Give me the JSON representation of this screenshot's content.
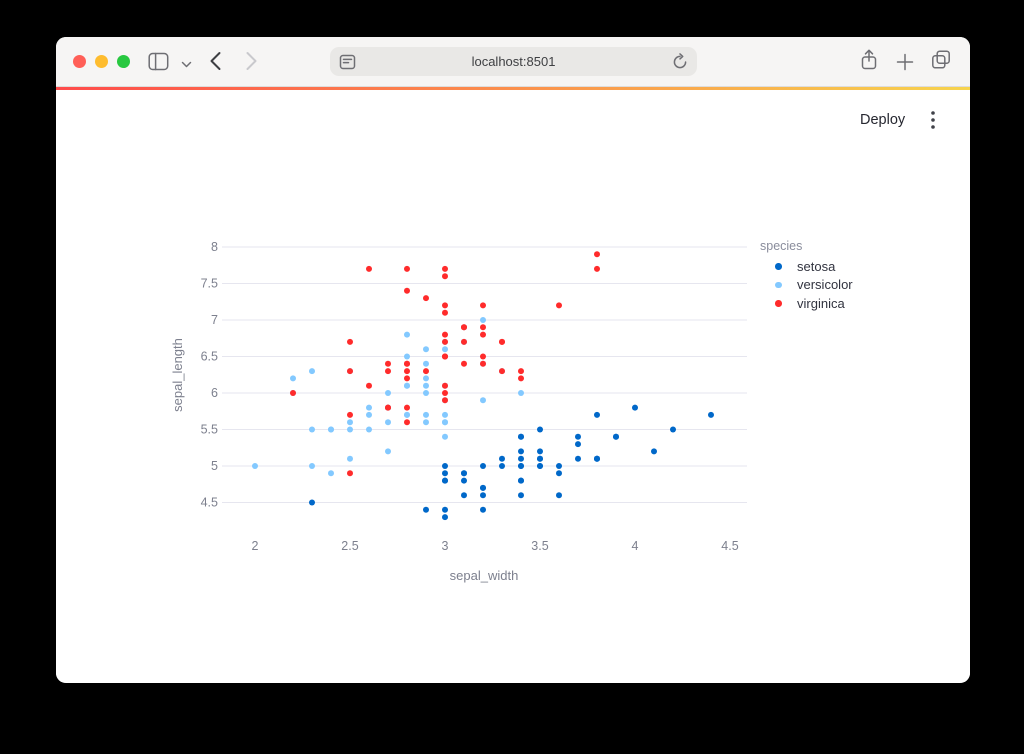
{
  "browser": {
    "url": "localhost:8501",
    "traffic_colors": [
      "#ff5f57",
      "#febc2e",
      "#28c840"
    ],
    "toolbar_icons": [
      "sidebar-icon",
      "chevron-down-icon",
      "back-icon",
      "forward-icon",
      "page-settings-icon",
      "reload-icon",
      "share-icon",
      "new-tab-icon",
      "tab-overview-icon"
    ]
  },
  "app": {
    "deploy_label": "Deploy",
    "menu_icon": "kebab-menu-icon",
    "decoration_colors": [
      "#ff4b4b",
      "#f7d44d"
    ]
  },
  "chart_data": {
    "type": "scatter",
    "title": "",
    "xlabel": "sepal_width",
    "ylabel": "sepal_length",
    "x_ticks": [
      2,
      2.5,
      3,
      3.5,
      4,
      4.5
    ],
    "y_ticks": [
      4.5,
      5,
      5.5,
      6,
      6.5,
      7,
      7.5,
      8
    ],
    "xlim": [
      1.83,
      4.6
    ],
    "ylim": [
      4.2,
      8.08
    ],
    "grid": "horizontal-only",
    "point_radius_px": 3,
    "colors": {
      "grid": "#e6e6ef",
      "tick_text": "#7d808e",
      "legend_label": "#31333f"
    },
    "legend": {
      "title": "species",
      "position": "right"
    },
    "series": [
      {
        "name": "setosa",
        "color": "#0068c9",
        "points": [
          [
            3.5,
            5.1
          ],
          [
            3.0,
            4.9
          ],
          [
            3.2,
            4.7
          ],
          [
            3.1,
            4.6
          ],
          [
            3.6,
            5.0
          ],
          [
            3.9,
            5.4
          ],
          [
            3.4,
            4.6
          ],
          [
            3.4,
            5.0
          ],
          [
            2.9,
            4.4
          ],
          [
            3.1,
            4.9
          ],
          [
            3.7,
            5.4
          ],
          [
            3.4,
            4.8
          ],
          [
            3.0,
            4.8
          ],
          [
            3.0,
            4.3
          ],
          [
            4.0,
            5.8
          ],
          [
            4.4,
            5.7
          ],
          [
            3.9,
            5.4
          ],
          [
            3.5,
            5.1
          ],
          [
            3.8,
            5.7
          ],
          [
            3.8,
            5.1
          ],
          [
            3.4,
            5.4
          ],
          [
            3.7,
            5.1
          ],
          [
            3.6,
            4.6
          ],
          [
            3.3,
            5.1
          ],
          [
            3.4,
            4.8
          ],
          [
            3.0,
            5.0
          ],
          [
            3.4,
            5.0
          ],
          [
            3.5,
            5.2
          ],
          [
            3.4,
            5.2
          ],
          [
            3.2,
            4.7
          ],
          [
            3.1,
            4.8
          ],
          [
            3.4,
            5.4
          ],
          [
            4.1,
            5.2
          ],
          [
            4.2,
            5.5
          ],
          [
            3.1,
            4.9
          ],
          [
            3.2,
            5.0
          ],
          [
            3.5,
            5.5
          ],
          [
            3.6,
            4.9
          ],
          [
            3.0,
            4.4
          ],
          [
            3.4,
            5.1
          ],
          [
            3.5,
            5.0
          ],
          [
            2.3,
            4.5
          ],
          [
            3.2,
            4.4
          ],
          [
            3.5,
            5.0
          ],
          [
            3.8,
            5.1
          ],
          [
            3.0,
            4.8
          ],
          [
            3.8,
            5.1
          ],
          [
            3.2,
            4.6
          ],
          [
            3.7,
            5.3
          ],
          [
            3.3,
            5.0
          ]
        ]
      },
      {
        "name": "versicolor",
        "color": "#83c9ff",
        "points": [
          [
            3.2,
            7.0
          ],
          [
            3.2,
            6.4
          ],
          [
            3.1,
            6.9
          ],
          [
            2.3,
            5.5
          ],
          [
            2.8,
            6.5
          ],
          [
            2.8,
            5.7
          ],
          [
            3.3,
            6.3
          ],
          [
            2.4,
            4.9
          ],
          [
            2.9,
            6.6
          ],
          [
            2.7,
            5.2
          ],
          [
            2.0,
            5.0
          ],
          [
            3.0,
            5.9
          ],
          [
            2.2,
            6.0
          ],
          [
            2.9,
            6.1
          ],
          [
            2.9,
            5.6
          ],
          [
            3.1,
            6.7
          ],
          [
            3.0,
            5.6
          ],
          [
            2.7,
            5.8
          ],
          [
            2.2,
            6.2
          ],
          [
            2.5,
            5.6
          ],
          [
            3.2,
            5.9
          ],
          [
            2.8,
            6.1
          ],
          [
            2.5,
            6.3
          ],
          [
            2.8,
            6.1
          ],
          [
            2.9,
            6.4
          ],
          [
            3.0,
            6.6
          ],
          [
            2.8,
            6.8
          ],
          [
            3.0,
            6.7
          ],
          [
            2.9,
            6.0
          ],
          [
            2.6,
            5.7
          ],
          [
            2.4,
            5.5
          ],
          [
            2.4,
            5.5
          ],
          [
            2.7,
            5.8
          ],
          [
            2.7,
            6.0
          ],
          [
            3.0,
            5.4
          ],
          [
            3.4,
            6.0
          ],
          [
            3.1,
            6.7
          ],
          [
            2.3,
            6.3
          ],
          [
            3.0,
            5.6
          ],
          [
            2.5,
            5.5
          ],
          [
            2.6,
            5.5
          ],
          [
            3.0,
            6.1
          ],
          [
            2.6,
            5.8
          ],
          [
            2.3,
            5.0
          ],
          [
            2.7,
            5.6
          ],
          [
            3.0,
            5.7
          ],
          [
            2.9,
            5.7
          ],
          [
            2.9,
            6.2
          ],
          [
            2.5,
            5.1
          ],
          [
            2.8,
            5.7
          ]
        ]
      },
      {
        "name": "virginica",
        "color": "#ff2b2b",
        "points": [
          [
            3.3,
            6.3
          ],
          [
            2.7,
            5.8
          ],
          [
            3.0,
            7.1
          ],
          [
            2.9,
            6.3
          ],
          [
            3.0,
            6.5
          ],
          [
            3.0,
            7.6
          ],
          [
            2.5,
            4.9
          ],
          [
            2.9,
            7.3
          ],
          [
            2.5,
            6.7
          ],
          [
            3.6,
            7.2
          ],
          [
            3.2,
            6.5
          ],
          [
            2.7,
            6.4
          ],
          [
            3.0,
            6.8
          ],
          [
            2.5,
            5.7
          ],
          [
            2.8,
            5.8
          ],
          [
            3.2,
            6.4
          ],
          [
            3.0,
            6.5
          ],
          [
            3.8,
            7.7
          ],
          [
            2.6,
            7.7
          ],
          [
            2.2,
            6.0
          ],
          [
            3.2,
            6.9
          ],
          [
            2.8,
            5.6
          ],
          [
            2.8,
            7.7
          ],
          [
            2.7,
            6.3
          ],
          [
            3.3,
            6.7
          ],
          [
            3.2,
            7.2
          ],
          [
            2.8,
            6.2
          ],
          [
            3.0,
            6.1
          ],
          [
            2.8,
            6.4
          ],
          [
            3.0,
            7.2
          ],
          [
            2.8,
            7.4
          ],
          [
            3.8,
            7.9
          ],
          [
            2.8,
            6.4
          ],
          [
            2.8,
            6.3
          ],
          [
            2.6,
            6.1
          ],
          [
            3.0,
            7.7
          ],
          [
            3.4,
            6.3
          ],
          [
            3.1,
            6.4
          ],
          [
            3.0,
            6.0
          ],
          [
            3.1,
            6.9
          ],
          [
            3.1,
            6.7
          ],
          [
            3.1,
            6.9
          ],
          [
            2.7,
            5.8
          ],
          [
            3.2,
            6.8
          ],
          [
            3.3,
            6.7
          ],
          [
            3.0,
            6.7
          ],
          [
            2.5,
            6.3
          ],
          [
            3.0,
            6.5
          ],
          [
            3.4,
            6.2
          ],
          [
            3.0,
            5.9
          ]
        ]
      }
    ]
  }
}
